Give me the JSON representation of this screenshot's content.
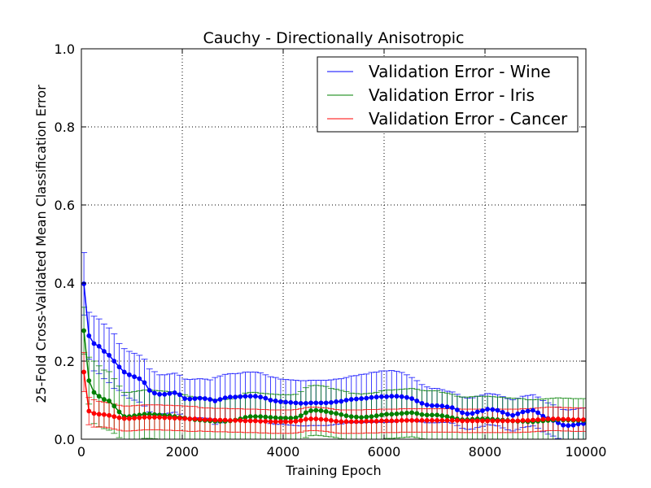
{
  "chart_data": {
    "type": "line",
    "title": "Cauchy - Directionally Anisotropic",
    "xlabel": "Training Epoch",
    "ylabel": "25-Fold Cross-Validated Mean Classification Error",
    "xlim": [
      0,
      10000
    ],
    "ylim": [
      0.0,
      1.0
    ],
    "xticks": [
      0,
      2000,
      4000,
      6000,
      8000,
      10000
    ],
    "xtick_labels": [
      "0",
      "2000",
      "4000",
      "6000",
      "8000",
      "10000"
    ],
    "yticks": [
      0.0,
      0.2,
      0.4,
      0.6,
      0.8,
      1.0
    ],
    "ytick_labels": [
      "0.0",
      "0.2",
      "0.4",
      "0.6",
      "0.8",
      "1.0"
    ],
    "grid": true,
    "legend_position": "top-right",
    "x": [
      50,
      150,
      250,
      350,
      450,
      550,
      650,
      750,
      850,
      950,
      1050,
      1150,
      1250,
      1350,
      1450,
      1550,
      1650,
      1750,
      1850,
      1950,
      2050,
      2150,
      2250,
      2350,
      2450,
      2550,
      2650,
      2750,
      2850,
      2950,
      3050,
      3150,
      3250,
      3350,
      3450,
      3550,
      3650,
      3750,
      3850,
      3950,
      4050,
      4150,
      4250,
      4350,
      4450,
      4550,
      4650,
      4750,
      4850,
      4950,
      5050,
      5150,
      5250,
      5350,
      5450,
      5550,
      5650,
      5750,
      5850,
      5950,
      6050,
      6150,
      6250,
      6350,
      6450,
      6550,
      6650,
      6750,
      6850,
      6950,
      7050,
      7150,
      7250,
      7350,
      7450,
      7550,
      7650,
      7750,
      7850,
      7950,
      8050,
      8150,
      8250,
      8350,
      8450,
      8550,
      8650,
      8750,
      8850,
      8950,
      9050,
      9150,
      9250,
      9350,
      9450,
      9550,
      9650,
      9750,
      9850,
      9950
    ],
    "series": [
      {
        "name": "Validation Error - Wine",
        "color": "#0000ff",
        "values": [
          0.398,
          0.265,
          0.245,
          0.238,
          0.225,
          0.215,
          0.2,
          0.185,
          0.172,
          0.165,
          0.16,
          0.155,
          0.145,
          0.125,
          0.118,
          0.115,
          0.115,
          0.117,
          0.119,
          0.114,
          0.104,
          0.103,
          0.104,
          0.105,
          0.104,
          0.102,
          0.098,
          0.102,
          0.106,
          0.108,
          0.108,
          0.109,
          0.11,
          0.11,
          0.11,
          0.108,
          0.105,
          0.1,
          0.098,
          0.096,
          0.095,
          0.094,
          0.093,
          0.092,
          0.092,
          0.093,
          0.093,
          0.093,
          0.093,
          0.094,
          0.096,
          0.097,
          0.1,
          0.102,
          0.103,
          0.104,
          0.105,
          0.107,
          0.108,
          0.109,
          0.109,
          0.11,
          0.11,
          0.109,
          0.107,
          0.104,
          0.098,
          0.092,
          0.088,
          0.086,
          0.086,
          0.085,
          0.083,
          0.081,
          0.075,
          0.068,
          0.065,
          0.066,
          0.07,
          0.073,
          0.077,
          0.076,
          0.074,
          0.069,
          0.064,
          0.061,
          0.065,
          0.07,
          0.072,
          0.074,
          0.068,
          0.059,
          0.053,
          0.048,
          0.042,
          0.036,
          0.035,
          0.036,
          0.039,
          0.04
        ],
        "errors": [
          0.08,
          0.06,
          0.07,
          0.07,
          0.07,
          0.07,
          0.07,
          0.06,
          0.06,
          0.06,
          0.06,
          0.06,
          0.06,
          0.055,
          0.055,
          0.05,
          0.05,
          0.05,
          0.05,
          0.05,
          0.05,
          0.05,
          0.05,
          0.05,
          0.05,
          0.05,
          0.06,
          0.06,
          0.06,
          0.06,
          0.06,
          0.06,
          0.062,
          0.062,
          0.062,
          0.062,
          0.06,
          0.06,
          0.06,
          0.058,
          0.058,
          0.058,
          0.058,
          0.058,
          0.058,
          0.058,
          0.058,
          0.058,
          0.058,
          0.058,
          0.058,
          0.058,
          0.058,
          0.06,
          0.06,
          0.062,
          0.062,
          0.064,
          0.064,
          0.066,
          0.066,
          0.066,
          0.064,
          0.062,
          0.058,
          0.054,
          0.052,
          0.048,
          0.046,
          0.044,
          0.044,
          0.042,
          0.04,
          0.04,
          0.04,
          0.04,
          0.04,
          0.04,
          0.04,
          0.04,
          0.04,
          0.04,
          0.04,
          0.04,
          0.04,
          0.04,
          0.04,
          0.04,
          0.04,
          0.04,
          0.04,
          0.04,
          0.04,
          0.04,
          0.04,
          0.04,
          0.04,
          0.04,
          0.04,
          0.04
        ]
      },
      {
        "name": "Validation Error - Iris",
        "color": "#008000",
        "values": [
          0.278,
          0.15,
          0.12,
          0.11,
          0.102,
          0.098,
          0.085,
          0.07,
          0.058,
          0.058,
          0.06,
          0.062,
          0.064,
          0.064,
          0.063,
          0.062,
          0.061,
          0.06,
          0.058,
          0.056,
          0.054,
          0.052,
          0.05,
          0.049,
          0.048,
          0.047,
          0.046,
          0.046,
          0.046,
          0.047,
          0.049,
          0.052,
          0.056,
          0.058,
          0.058,
          0.058,
          0.057,
          0.056,
          0.055,
          0.054,
          0.054,
          0.054,
          0.055,
          0.06,
          0.068,
          0.073,
          0.074,
          0.073,
          0.071,
          0.068,
          0.066,
          0.063,
          0.06,
          0.058,
          0.057,
          0.056,
          0.057,
          0.058,
          0.06,
          0.062,
          0.064,
          0.064,
          0.065,
          0.066,
          0.067,
          0.068,
          0.066,
          0.063,
          0.062,
          0.062,
          0.062,
          0.06,
          0.058,
          0.055,
          0.052,
          0.05,
          0.05,
          0.051,
          0.052,
          0.052,
          0.052,
          0.051,
          0.05,
          0.049,
          0.048,
          0.047,
          0.046,
          0.046,
          0.045,
          0.045,
          0.046,
          0.047,
          0.048,
          0.049,
          0.05,
          0.049,
          0.049,
          0.048,
          0.048,
          0.048
        ],
        "errors": [
          0.06,
          0.06,
          0.08,
          0.078,
          0.075,
          0.075,
          0.07,
          0.066,
          0.062,
          0.062,
          0.062,
          0.062,
          0.062,
          0.062,
          0.062,
          0.062,
          0.062,
          0.062,
          0.06,
          0.06,
          0.06,
          0.058,
          0.058,
          0.058,
          0.056,
          0.056,
          0.056,
          0.056,
          0.056,
          0.056,
          0.058,
          0.06,
          0.062,
          0.062,
          0.062,
          0.06,
          0.06,
          0.06,
          0.06,
          0.06,
          0.06,
          0.06,
          0.06,
          0.062,
          0.064,
          0.064,
          0.064,
          0.064,
          0.064,
          0.062,
          0.062,
          0.062,
          0.062,
          0.06,
          0.06,
          0.06,
          0.06,
          0.06,
          0.06,
          0.062,
          0.062,
          0.062,
          0.062,
          0.062,
          0.062,
          0.062,
          0.062,
          0.062,
          0.062,
          0.062,
          0.062,
          0.06,
          0.06,
          0.06,
          0.058,
          0.058,
          0.058,
          0.058,
          0.058,
          0.058,
          0.058,
          0.058,
          0.058,
          0.058,
          0.058,
          0.058,
          0.058,
          0.058,
          0.056,
          0.056,
          0.056,
          0.056,
          0.056,
          0.056,
          0.056,
          0.056,
          0.056,
          0.056,
          0.056,
          0.056
        ]
      },
      {
        "name": "Validation Error - Cancer",
        "color": "#ff0000",
        "values": [
          0.172,
          0.072,
          0.066,
          0.064,
          0.063,
          0.061,
          0.058,
          0.055,
          0.053,
          0.053,
          0.054,
          0.055,
          0.056,
          0.056,
          0.056,
          0.056,
          0.055,
          0.055,
          0.054,
          0.054,
          0.053,
          0.052,
          0.052,
          0.051,
          0.05,
          0.05,
          0.049,
          0.049,
          0.049,
          0.048,
          0.048,
          0.048,
          0.047,
          0.047,
          0.047,
          0.046,
          0.046,
          0.045,
          0.045,
          0.045,
          0.045,
          0.045,
          0.046,
          0.048,
          0.051,
          0.052,
          0.052,
          0.051,
          0.05,
          0.048,
          0.046,
          0.045,
          0.045,
          0.045,
          0.045,
          0.045,
          0.046,
          0.046,
          0.046,
          0.047,
          0.047,
          0.047,
          0.047,
          0.048,
          0.048,
          0.048,
          0.048,
          0.048,
          0.048,
          0.048,
          0.048,
          0.048,
          0.048,
          0.048,
          0.048,
          0.047,
          0.047,
          0.047,
          0.047,
          0.047,
          0.047,
          0.047,
          0.047,
          0.047,
          0.047,
          0.047,
          0.047,
          0.048,
          0.048,
          0.049,
          0.05,
          0.051,
          0.052,
          0.052,
          0.052,
          0.051,
          0.051,
          0.05,
          0.05,
          0.05
        ],
        "errors": [
          0.05,
          0.035,
          0.035,
          0.033,
          0.032,
          0.032,
          0.032,
          0.032,
          0.032,
          0.032,
          0.032,
          0.032,
          0.032,
          0.032,
          0.032,
          0.032,
          0.032,
          0.032,
          0.032,
          0.032,
          0.032,
          0.032,
          0.032,
          0.03,
          0.03,
          0.03,
          0.03,
          0.03,
          0.03,
          0.03,
          0.03,
          0.03,
          0.03,
          0.03,
          0.03,
          0.03,
          0.03,
          0.03,
          0.03,
          0.03,
          0.03,
          0.03,
          0.03,
          0.03,
          0.03,
          0.03,
          0.03,
          0.03,
          0.03,
          0.03,
          0.03,
          0.03,
          0.03,
          0.03,
          0.03,
          0.03,
          0.03,
          0.03,
          0.03,
          0.03,
          0.03,
          0.03,
          0.03,
          0.03,
          0.03,
          0.03,
          0.03,
          0.03,
          0.03,
          0.03,
          0.03,
          0.03,
          0.03,
          0.03,
          0.03,
          0.03,
          0.03,
          0.03,
          0.03,
          0.03,
          0.03,
          0.03,
          0.03,
          0.03,
          0.03,
          0.03,
          0.03,
          0.03,
          0.03,
          0.03,
          0.03,
          0.03,
          0.03,
          0.03,
          0.03,
          0.03,
          0.03,
          0.03,
          0.03,
          0.03
        ]
      }
    ]
  }
}
